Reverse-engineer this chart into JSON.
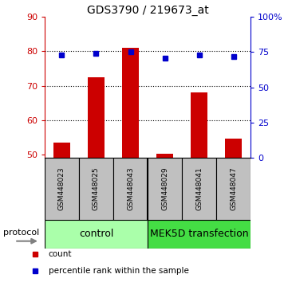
{
  "title": "GDS3790 / 219673_at",
  "samples": [
    "GSM448023",
    "GSM448025",
    "GSM448043",
    "GSM448029",
    "GSM448041",
    "GSM448047"
  ],
  "count_values": [
    53.5,
    72.5,
    81.0,
    50.2,
    68.0,
    54.5
  ],
  "percentile_values": [
    73,
    74,
    75,
    71,
    73,
    72
  ],
  "ylim_left": [
    49,
    90
  ],
  "ylim_right": [
    0,
    100
  ],
  "yticks_left": [
    50,
    60,
    70,
    80,
    90
  ],
  "yticks_right": [
    0,
    25,
    50,
    75,
    100
  ],
  "ytick_labels_right": [
    "0",
    "25",
    "50",
    "75",
    "100%"
  ],
  "groups": [
    {
      "label": "control",
      "span": [
        0,
        3
      ],
      "color": "#AAFFAA"
    },
    {
      "label": "MEK5D transfection",
      "span": [
        3,
        6
      ],
      "color": "#44DD44"
    }
  ],
  "bar_color": "#CC0000",
  "dot_color": "#0000CC",
  "bar_width": 0.5,
  "bg_xlabel": "#C0C0C0",
  "left_axis_color": "#CC0000",
  "right_axis_color": "#0000CC",
  "legend_items": [
    {
      "color": "#CC0000",
      "label": "count"
    },
    {
      "color": "#0000CC",
      "label": "percentile rank within the sample"
    }
  ]
}
